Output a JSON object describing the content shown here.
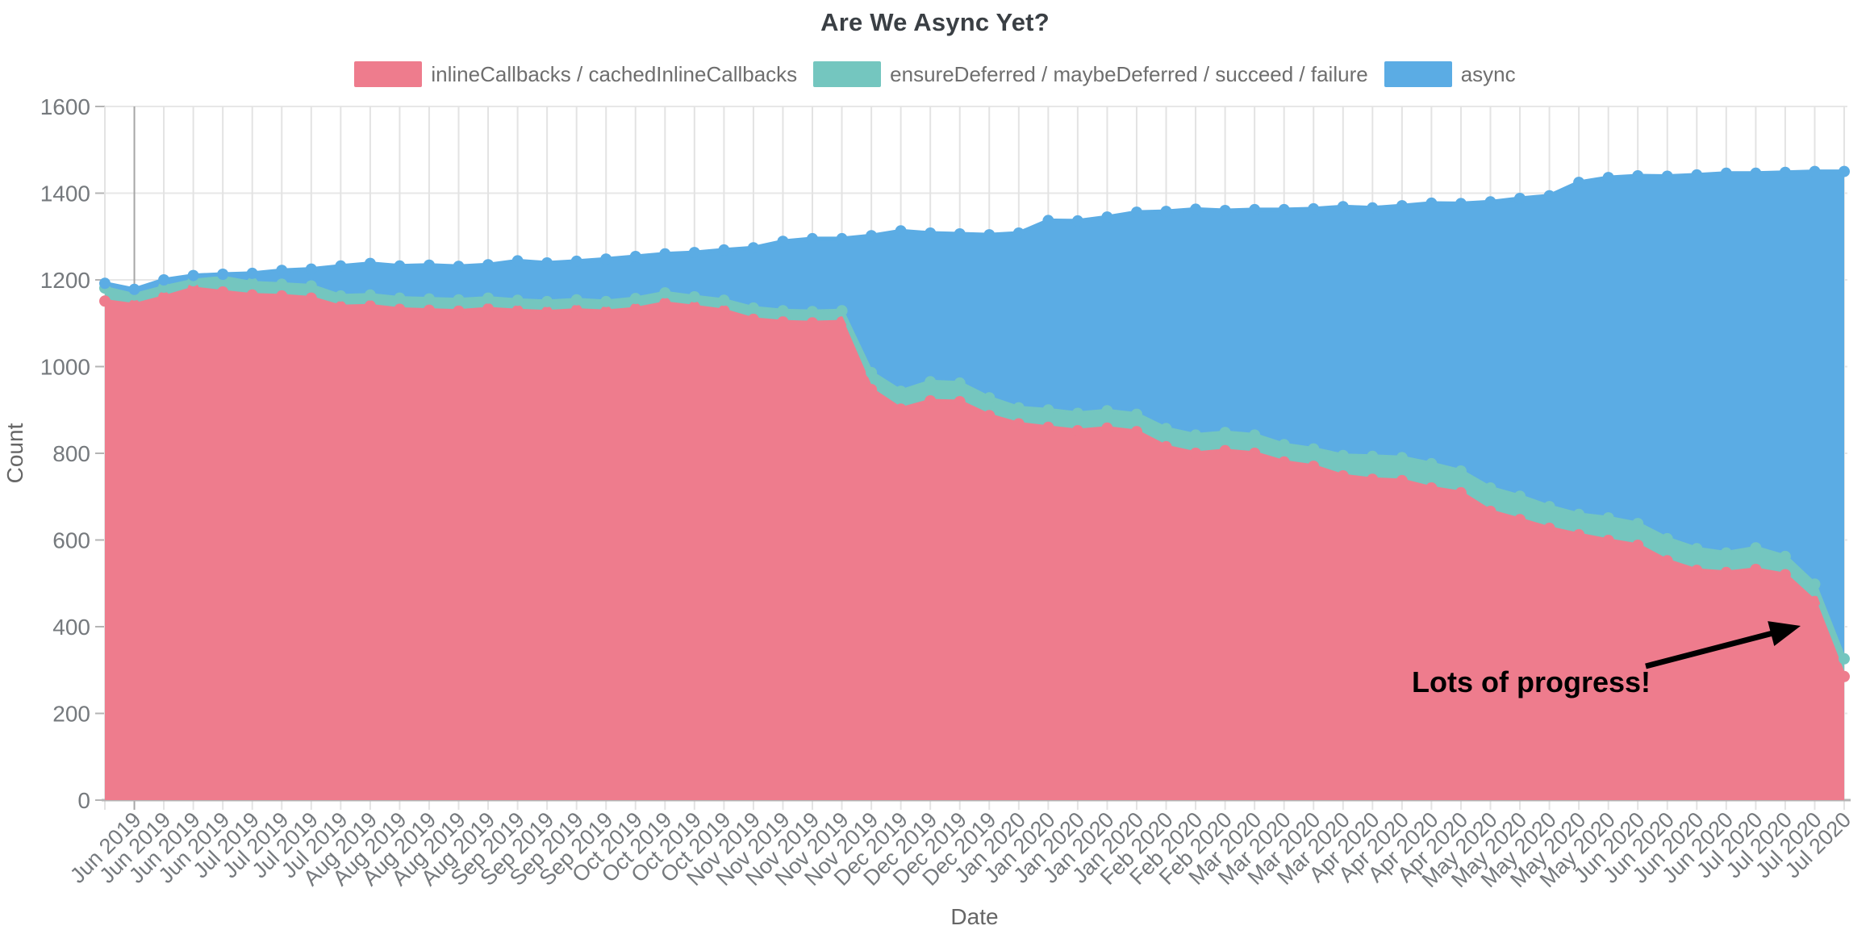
{
  "chart_data": {
    "type": "area",
    "stacked": true,
    "title": "Are We Async Yet?",
    "xlabel": "Date",
    "ylabel": "Count",
    "ylim": [
      0,
      1600
    ],
    "ytick_step": 200,
    "grid": true,
    "legend_position": "top",
    "x_labels": [
      "",
      "Jun 2019",
      "Jun 2019",
      "Jun 2019",
      "Jun 2019",
      "Jul 2019",
      "Jul 2019",
      "Jul 2019",
      "Jul 2019",
      "Aug 2019",
      "Aug 2019",
      "Aug 2019",
      "Aug 2019",
      "Aug 2019",
      "Sep 2019",
      "Sep 2019",
      "Sep 2019",
      "Sep 2019",
      "Oct 2019",
      "Oct 2019",
      "Oct 2019",
      "Oct 2019",
      "Nov 2019",
      "Nov 2019",
      "Nov 2019",
      "Nov 2019",
      "Nov 2019",
      "Dec 2019",
      "Dec 2019",
      "Dec 2019",
      "Dec 2019",
      "Jan 2020",
      "Jan 2020",
      "Jan 2020",
      "Jan 2020",
      "Jan 2020",
      "Feb 2020",
      "Feb 2020",
      "Feb 2020",
      "Mar 2020",
      "Mar 2020",
      "Mar 2020",
      "Mar 2020",
      "Apr 2020",
      "Apr 2020",
      "Apr 2020",
      "Apr 2020",
      "May 2020",
      "May 2020",
      "May 2020",
      "May 2020",
      "May 2020",
      "Jun 2020",
      "Jun 2020",
      "Jun 2020",
      "Jun 2020",
      "Jul 2020",
      "Jul 2020",
      "Jul 2020",
      "Jul 2020"
    ],
    "series": [
      {
        "name": "inlineCallbacks / cachedInlineCallbacks",
        "color": "#EE7C8D",
        "values": [
          1151,
          1142,
          1160,
          1180,
          1172,
          1165,
          1163,
          1158,
          1138,
          1140,
          1132,
          1130,
          1128,
          1133,
          1129,
          1126,
          1130,
          1127,
          1133,
          1146,
          1138,
          1129,
          1109,
          1103,
          1101,
          1103,
          947,
          902,
          921,
          919,
          887,
          868,
          860,
          852,
          858,
          850,
          815,
          800,
          806,
          800,
          780,
          770,
          748,
          740,
          737,
          720,
          709,
          666,
          647,
          627,
          612,
          599,
          588,
          552,
          530,
          525,
          532,
          520,
          458,
          285
        ]
      },
      {
        "name": "ensureDeferred / maybeDeferred / succeed / failure",
        "color": "#74C6BF",
        "values": [
          30,
          23,
          23,
          18,
          33,
          28,
          27,
          28,
          25,
          25,
          26,
          26,
          26,
          25,
          24,
          24,
          24,
          23,
          24,
          24,
          23,
          24,
          26,
          26,
          26,
          26,
          39,
          41,
          44,
          43,
          41,
          37,
          40,
          40,
          40,
          40,
          42,
          42,
          42,
          42,
          40,
          40,
          47,
          53,
          53,
          56,
          50,
          54,
          54,
          50,
          47,
          52,
          50,
          51,
          50,
          45,
          50,
          42,
          40,
          41
        ]
      },
      {
        "name": "async",
        "color": "#5BACE4",
        "values": [
          11,
          13,
          17,
          12,
          8,
          22,
          32,
          39,
          69,
          73,
          74,
          78,
          77,
          77,
          91,
          89,
          89,
          98,
          97,
          90,
          102,
          116,
          139,
          160,
          168,
          166,
          316,
          370,
          343,
          344,
          376,
          403,
          437,
          444,
          447,
          466,
          501,
          521,
          512,
          520,
          542,
          554,
          574,
          573,
          581,
          601,
          617,
          660,
          687,
          717,
          766,
          785,
          802,
          836,
          862,
          876,
          864,
          886,
          952,
          1124
        ]
      }
    ],
    "annotation": {
      "text": "Lots of progress!",
      "text_x": 1750,
      "text_y": 858,
      "arrow_from": [
        2040,
        826
      ],
      "arrow_to": [
        2232,
        776
      ]
    },
    "style": {
      "grid_color": "#e7e7e7",
      "grid_color_dark": "#a6a6a6",
      "axis_color": "#b4b4b4",
      "tick_text_color": "#75797d",
      "axis_title_color": "#666666",
      "title_color": "#3a3f44",
      "annotation_color": "#000000"
    }
  }
}
